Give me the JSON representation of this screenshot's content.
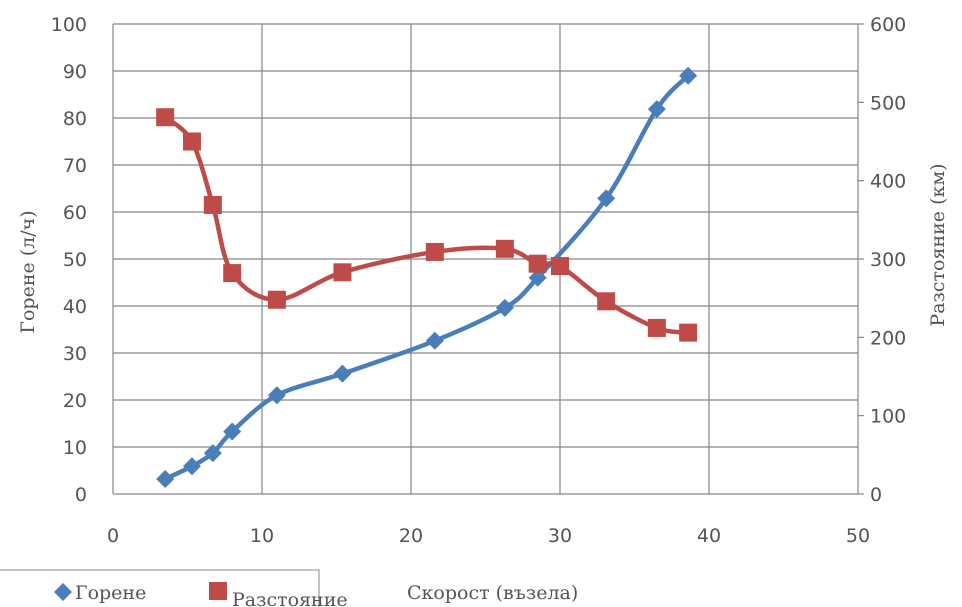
{
  "chart_data": {
    "type": "line",
    "xlabel": "Скорост (възела)",
    "ylabel": "Горене (л/ч)",
    "y2label": "Разстояние (км)",
    "xlim": [
      0,
      50
    ],
    "ylim": [
      0,
      100
    ],
    "y2lim": [
      0,
      600
    ],
    "x_ticks": [
      "0",
      "10",
      "20",
      "30",
      "40",
      "50"
    ],
    "y_ticks": [
      "0",
      "10",
      "20",
      "30",
      "40",
      "50",
      "60",
      "70",
      "80",
      "90",
      "100"
    ],
    "y2_ticks": [
      "0",
      "100",
      "200",
      "300",
      "400",
      "500",
      "600"
    ],
    "grid": true,
    "legend_position": "bottom-left",
    "series": [
      {
        "name": "Горене",
        "axis": "left",
        "color": "#4a7ebb",
        "marker": "diamond",
        "x": [
          3.5,
          5.3,
          6.7,
          8.0,
          11.0,
          15.4,
          21.6,
          26.3,
          28.5,
          33.1,
          36.5,
          38.6
        ],
        "y": [
          3.2,
          5.9,
          8.7,
          13.3,
          21.0,
          25.6,
          32.6,
          39.6,
          46.0,
          62.9,
          81.9,
          89.0
        ]
      },
      {
        "name": "Разстояние",
        "axis": "right",
        "color": "#be4b48",
        "marker": "square",
        "x": [
          3.5,
          5.3,
          6.7,
          8.0,
          11.0,
          15.4,
          21.6,
          26.3,
          28.5,
          30.0,
          33.1,
          36.5,
          38.6
        ],
        "y": [
          481,
          450,
          369,
          282,
          248,
          283,
          309,
          313,
          294,
          291,
          246,
          212,
          206
        ]
      }
    ]
  }
}
